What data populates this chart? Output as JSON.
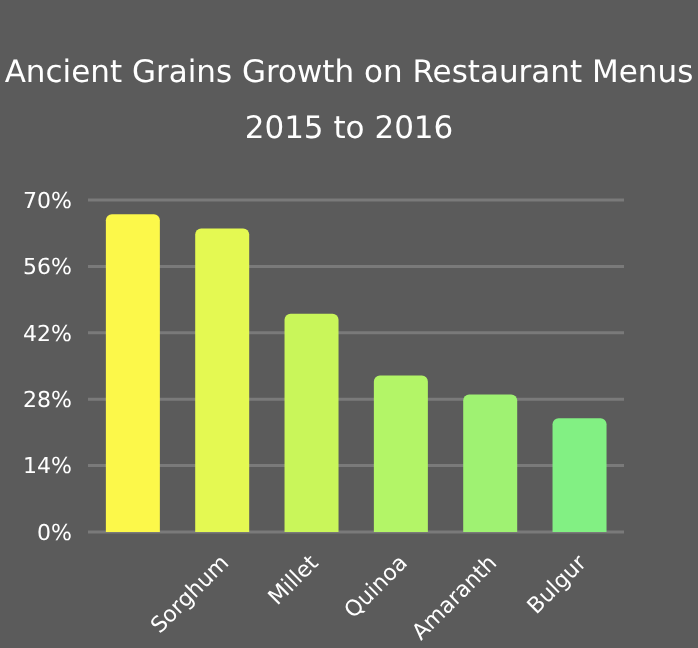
{
  "chart_data": {
    "type": "bar",
    "title": "Ancient Grains Growth on Restaurant Menus",
    "subtitle": "2015 to 2016",
    "categories": [
      null,
      "Sorghum",
      "Millet",
      "Quinoa",
      "Amaranth",
      "Bulgur"
    ],
    "values": [
      67,
      64,
      46,
      33,
      29,
      24
    ],
    "colors": [
      "#fcf84a",
      "#e4f952",
      "#c9f65a",
      "#b3f567",
      "#9ff272",
      "#82f083"
    ],
    "ylim": [
      0,
      70
    ],
    "yticks": [
      {
        "value": 0,
        "label": "0%"
      },
      {
        "value": 14,
        "label": "14%"
      },
      {
        "value": 28,
        "label": "28%"
      },
      {
        "value": 42,
        "label": "42%"
      },
      {
        "value": 56,
        "label": "56%"
      },
      {
        "value": 70,
        "label": "70%"
      }
    ],
    "grid": "y"
  }
}
